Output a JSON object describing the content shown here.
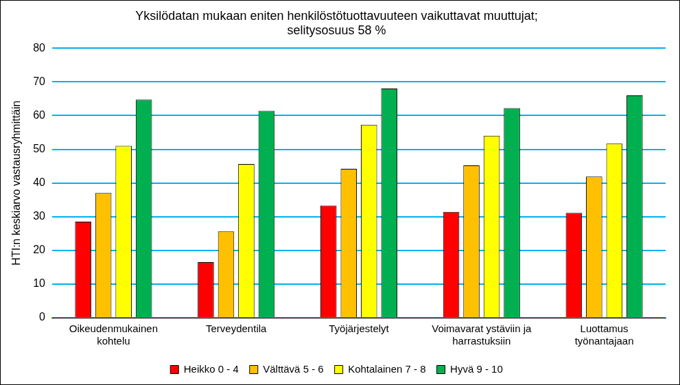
{
  "chart_data": {
    "type": "bar",
    "title": [
      "Yksilödatan mukaan eniten henkilöstötuottavuuteen vaikuttavat muuttujat;",
      "selitysosuus 58 %"
    ],
    "y_label": "HTI:n keskiarvo vastausryhmittäin",
    "categories": [
      "Oikeudenmukainen kohtelu",
      "Terveydentila",
      "Työjärjestelyt",
      "Voimavarat ystäviin ja harrastuksiin",
      "Luottamus työnantajaan"
    ],
    "series": [
      {
        "name": "Heikko 0 - 4",
        "color": "#ff0000",
        "values": [
          28.5,
          16.5,
          33.3,
          31.4,
          31.1
        ]
      },
      {
        "name": "Välttävä 5 - 6",
        "color": "#ffc000",
        "values": [
          37.0,
          25.6,
          44.2,
          45.2,
          41.9
        ]
      },
      {
        "name": "Kohtalainen 7 - 8",
        "color": "#ffff00",
        "values": [
          51.0,
          45.6,
          57.3,
          54.0,
          51.7
        ]
      },
      {
        "name": "Hyvä 9 - 10",
        "color": "#00b050",
        "values": [
          64.7,
          61.4,
          68.0,
          62.2,
          66.0
        ]
      }
    ],
    "ylim": [
      0,
      80
    ],
    "yticks": [
      0,
      10,
      20,
      30,
      40,
      50,
      60,
      70,
      80
    ],
    "grid": true,
    "legend": "bottom"
  }
}
